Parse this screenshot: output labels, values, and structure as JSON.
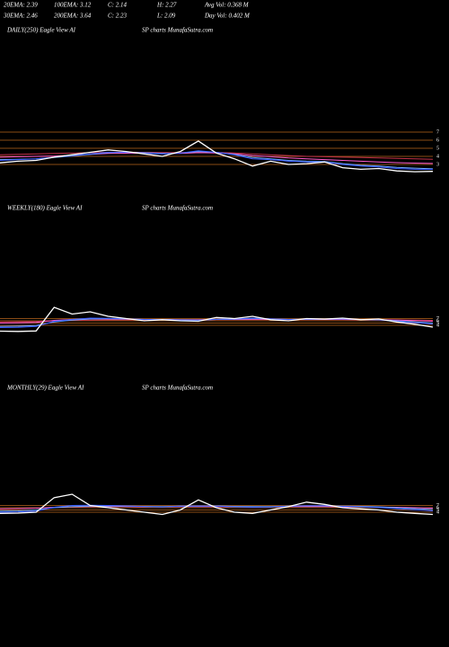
{
  "header": [
    [
      "20EMA: 2.39",
      "100EMA: 3.12",
      "C: 2.14",
      "H: 2.27",
      "Avg Vol: 0.368 M"
    ],
    [
      "30EMA: 2.46",
      "200EMA: 3.64",
      "C: 2.23",
      "L: 2.09",
      "Day Vol: 0.402 M"
    ]
  ],
  "chart_data": [
    {
      "type": "line",
      "title": "DAILY(250) Eagle  View  AI",
      "subtitle": "SP charts MunafaSutra.com",
      "ylim": [
        1,
        8
      ],
      "yticks": [
        7,
        6,
        5,
        4,
        3
      ],
      "grid": true,
      "grid_color": "#b8651c",
      "series": [
        {
          "name": "200EMA",
          "color": "#c03048",
          "values": [
            4.2,
            4.25,
            4.3,
            4.35,
            4.4,
            4.45,
            4.5,
            4.52,
            4.5,
            4.48,
            4.47,
            4.5,
            4.48,
            4.42,
            4.3,
            4.2,
            4.1,
            4.0,
            3.95,
            3.9,
            3.85,
            3.8,
            3.75,
            3.7,
            3.64
          ]
        },
        {
          "name": "100EMA",
          "color": "#ff5ccf",
          "values": [
            3.9,
            3.95,
            4.0,
            4.05,
            4.15,
            4.25,
            4.35,
            4.4,
            4.38,
            4.35,
            4.36,
            4.45,
            4.42,
            4.3,
            4.1,
            3.95,
            3.8,
            3.7,
            3.6,
            3.5,
            3.4,
            3.3,
            3.22,
            3.17,
            3.12
          ]
        },
        {
          "name": "30EMA",
          "color": "#6fa8ff",
          "values": [
            3.6,
            3.65,
            3.7,
            3.85,
            4.05,
            4.25,
            4.45,
            4.5,
            4.45,
            4.35,
            4.4,
            4.6,
            4.5,
            4.25,
            3.85,
            3.7,
            3.5,
            3.4,
            3.35,
            3.1,
            2.9,
            2.8,
            2.65,
            2.55,
            2.46
          ]
        },
        {
          "name": "20EMA",
          "color": "#3a5cff",
          "values": [
            3.5,
            3.6,
            3.7,
            3.9,
            4.1,
            4.3,
            4.5,
            4.5,
            4.4,
            4.3,
            4.4,
            4.7,
            4.5,
            4.2,
            3.7,
            3.6,
            3.4,
            3.3,
            3.3,
            3.0,
            2.8,
            2.7,
            2.5,
            2.4,
            2.39
          ]
        },
        {
          "name": "Price",
          "color": "#ffffff",
          "values": [
            3.2,
            3.4,
            3.5,
            3.9,
            4.2,
            4.5,
            4.8,
            4.6,
            4.3,
            4.0,
            4.6,
            5.9,
            4.4,
            3.7,
            2.8,
            3.4,
            3.0,
            3.1,
            3.3,
            2.6,
            2.4,
            2.5,
            2.2,
            2.1,
            2.14
          ]
        }
      ]
    },
    {
      "type": "line",
      "title": "WEEKLY(180) Eagle  View  AI",
      "subtitle": "SP charts MunafaSutra.com",
      "ylim": [
        0,
        20
      ],
      "yticks": [
        7,
        6,
        5,
        4
      ],
      "grid": true,
      "grid_color": "#b8651c",
      "series": [
        {
          "name": "200EMA",
          "color": "#c03048",
          "values": [
            5.5,
            5.6,
            5.7,
            6.0,
            6.2,
            6.3,
            6.4,
            6.4,
            6.4,
            6.4,
            6.4,
            6.4,
            6.5,
            6.5,
            6.5,
            6.5,
            6.5,
            6.5,
            6.5,
            6.5,
            6.5,
            6.5,
            6.4,
            6.3,
            6.2
          ]
        },
        {
          "name": "100EMA",
          "color": "#ff5ccf",
          "values": [
            5.0,
            5.1,
            5.3,
            6.2,
            6.6,
            6.8,
            6.8,
            6.7,
            6.6,
            6.6,
            6.5,
            6.5,
            6.6,
            6.6,
            6.7,
            6.6,
            6.6,
            6.6,
            6.6,
            6.6,
            6.5,
            6.5,
            6.3,
            6.1,
            5.8
          ]
        },
        {
          "name": "30EMA",
          "color": "#6fa8ff",
          "values": [
            3.5,
            3.6,
            3.9,
            5.5,
            6.3,
            6.8,
            6.9,
            6.8,
            6.6,
            6.6,
            6.4,
            6.3,
            6.6,
            6.7,
            7.0,
            6.8,
            6.6,
            6.7,
            6.7,
            6.8,
            6.6,
            6.5,
            6.0,
            5.5,
            5.0
          ]
        },
        {
          "name": "20EMA",
          "color": "#3a5cff",
          "values": [
            3.0,
            3.1,
            3.5,
            5.8,
            6.6,
            7.2,
            7.1,
            6.9,
            6.6,
            6.6,
            6.3,
            6.2,
            6.7,
            6.8,
            7.2,
            6.9,
            6.6,
            6.7,
            6.8,
            6.9,
            6.6,
            6.4,
            5.8,
            5.2,
            4.6
          ]
        },
        {
          "name": "Price",
          "color": "#ffffff",
          "values": [
            1.4,
            1.3,
            1.5,
            12,
            9,
            10,
            8,
            7,
            6,
            6.5,
            6,
            5.8,
            7.5,
            7,
            8,
            6.5,
            6,
            7,
            6.8,
            7.2,
            6.5,
            6.8,
            5.5,
            4.5,
            3.2
          ]
        }
      ]
    },
    {
      "type": "line",
      "title": "MONTHLY(29) Eagle  View  AI",
      "subtitle": "SP charts MunafaSutra.com",
      "ylim": [
        0,
        20
      ],
      "yticks": [
        7,
        6,
        5,
        4
      ],
      "grid": true,
      "grid_color": "#b8651c",
      "series": [
        {
          "name": "100EMA",
          "color": "#ff5ccf",
          "values": [
            5.5,
            5.6,
            5.8,
            6.2,
            6.4,
            6.5,
            6.5,
            6.5,
            6.4,
            6.4,
            6.5,
            6.5,
            6.5,
            6.4,
            6.4,
            6.4,
            6.5,
            6.5,
            6.5,
            6.4,
            6.4,
            6.3,
            6.2,
            6.0,
            5.8
          ]
        },
        {
          "name": "30EMA",
          "color": "#6fa8ff",
          "values": [
            4.5,
            4.6,
            5.0,
            6.0,
            6.5,
            6.7,
            6.8,
            6.7,
            6.6,
            6.5,
            6.7,
            6.7,
            6.8,
            6.6,
            6.5,
            6.5,
            6.7,
            6.8,
            6.8,
            6.7,
            6.6,
            6.4,
            6.0,
            5.6,
            5.2
          ]
        },
        {
          "name": "20EMA",
          "color": "#3a5cff",
          "values": [
            4.0,
            4.1,
            4.5,
            6.2,
            7.0,
            7.1,
            7.0,
            6.8,
            6.5,
            6.3,
            6.7,
            6.8,
            6.7,
            6.4,
            6.2,
            6.3,
            6.7,
            6.9,
            6.9,
            6.6,
            6.4,
            6.1,
            5.6,
            5.1,
            4.6
          ]
        },
        {
          "name": "Price",
          "color": "#ffffff",
          "values": [
            3.5,
            3.6,
            4.0,
            10.5,
            12,
            7,
            6,
            5,
            4,
            3,
            5,
            9.5,
            6,
            4,
            3.5,
            5,
            6.5,
            8.5,
            7.5,
            6,
            5.5,
            5,
            4,
            3.5,
            3
          ]
        }
      ]
    }
  ]
}
